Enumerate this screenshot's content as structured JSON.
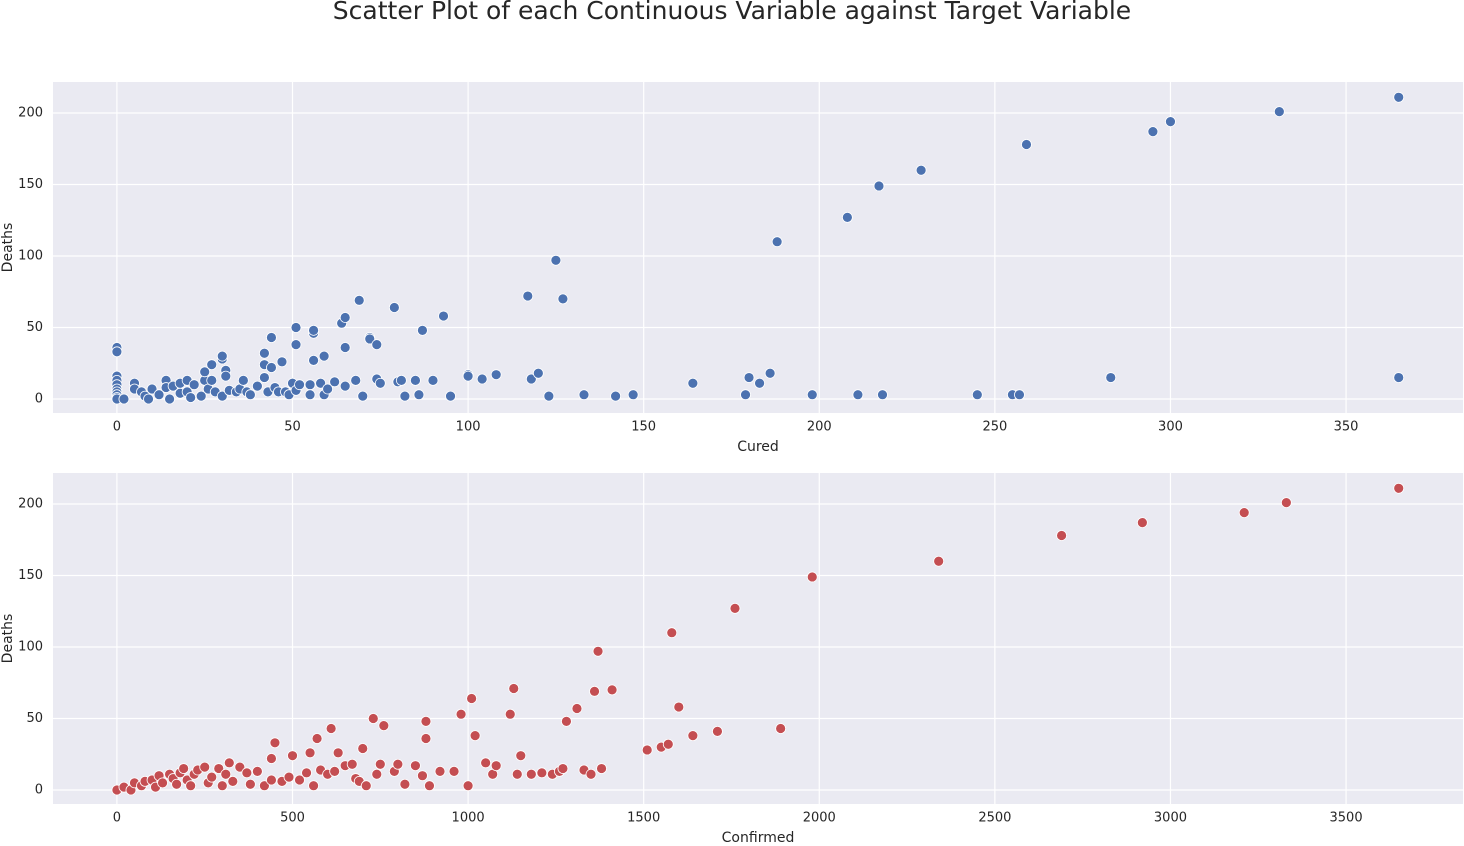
{
  "title": "Scatter Plot of each Continuous Variable against Target Variable",
  "chart_data": [
    {
      "type": "scatter",
      "xlabel": "Cured",
      "ylabel": "Deaths",
      "color": "#4c72b0",
      "xlim": [
        -18.2,
        383.3
      ],
      "ylim": [
        -9.8,
        221.7
      ],
      "xticks": [
        0,
        50,
        100,
        150,
        200,
        250,
        300,
        350
      ],
      "yticks": [
        0,
        50,
        100,
        150,
        200
      ],
      "grid": true,
      "x": [
        0,
        0,
        0,
        0,
        0,
        0,
        0,
        0,
        0,
        0,
        2,
        5,
        5,
        7,
        8,
        9,
        10,
        12,
        14,
        14,
        15,
        16,
        18,
        18,
        20,
        20,
        21,
        22,
        24,
        25,
        25,
        26,
        27,
        27,
        28,
        30,
        30,
        30,
        31,
        31,
        32,
        34,
        35,
        36,
        37,
        38,
        40,
        42,
        42,
        42,
        43,
        44,
        44,
        45,
        46,
        47,
        48,
        49,
        50,
        51,
        51,
        51,
        52,
        55,
        55,
        56,
        56,
        56,
        58,
        59,
        59,
        60,
        62,
        64,
        65,
        65,
        65,
        68,
        69,
        70,
        72,
        72,
        74,
        74,
        75,
        79,
        80,
        81,
        82,
        85,
        86,
        87,
        90,
        93,
        95,
        100,
        100,
        104,
        108,
        117,
        118,
        120,
        123,
        125,
        127,
        133,
        142,
        147,
        164,
        179,
        180,
        183,
        186,
        188,
        198,
        208,
        211,
        217,
        218,
        229,
        245,
        255,
        257,
        259,
        283,
        295,
        300,
        331,
        365,
        365
      ],
      "values": [
        36,
        33,
        16,
        13,
        10,
        7,
        5,
        3,
        1,
        0,
        0,
        11,
        7,
        5,
        2,
        0,
        7,
        3,
        13,
        8,
        0,
        9,
        4,
        11,
        13,
        5,
        1,
        10,
        2,
        13,
        19,
        7,
        24,
        13,
        5,
        28,
        30,
        2,
        20,
        16,
        6,
        5,
        7,
        13,
        5,
        3,
        9,
        15,
        24,
        32,
        5,
        22,
        43,
        8,
        5,
        26,
        5,
        3,
        11,
        50,
        38,
        6,
        10,
        10,
        3,
        46,
        48,
        27,
        11,
        30,
        3,
        7,
        12,
        53,
        57,
        36,
        9,
        13,
        69,
        2,
        43,
        42,
        38,
        14,
        11,
        64,
        12,
        13,
        2,
        13,
        3,
        48,
        13,
        58,
        2,
        17,
        16,
        14,
        17,
        72,
        14,
        18,
        2,
        97,
        70,
        3,
        2,
        3,
        11,
        3,
        15,
        11,
        18,
        110,
        3,
        127,
        3,
        149,
        3,
        160,
        3,
        3,
        3,
        178,
        15,
        187,
        194,
        201,
        211,
        15
      ]
    },
    {
      "type": "scatter",
      "xlabel": "Confirmed",
      "ylabel": "Deaths",
      "color": "#c44e52",
      "xlim": [
        -182,
        3833
      ],
      "ylim": [
        -9.8,
        221.7
      ],
      "xticks": [
        0,
        500,
        1000,
        1500,
        2000,
        2500,
        3000,
        3500
      ],
      "yticks": [
        0,
        50,
        100,
        150,
        200
      ],
      "grid": true,
      "x": [
        0,
        20,
        40,
        50,
        70,
        80,
        100,
        110,
        120,
        130,
        150,
        160,
        170,
        180,
        190,
        200,
        210,
        220,
        230,
        250,
        260,
        270,
        290,
        300,
        310,
        320,
        330,
        350,
        370,
        380,
        400,
        420,
        440,
        440,
        450,
        470,
        490,
        500,
        520,
        540,
        550,
        560,
        570,
        580,
        600,
        610,
        620,
        630,
        650,
        670,
        680,
        690,
        700,
        710,
        730,
        740,
        750,
        760,
        790,
        800,
        820,
        850,
        870,
        880,
        880,
        890,
        920,
        960,
        980,
        1000,
        1010,
        1020,
        1050,
        1070,
        1080,
        1120,
        1130,
        1140,
        1150,
        1180,
        1210,
        1240,
        1260,
        1270,
        1280,
        1310,
        1330,
        1350,
        1360,
        1370,
        1380,
        1410,
        1510,
        1550,
        1570,
        1580,
        1600,
        1640,
        1710,
        1760,
        1890,
        1980,
        2340,
        2690,
        2920,
        3210,
        3330,
        3650
      ],
      "values": [
        0,
        2,
        0,
        5,
        3,
        6,
        7,
        2,
        10,
        5,
        11,
        8,
        4,
        12,
        15,
        7,
        3,
        11,
        14,
        16,
        5,
        9,
        15,
        3,
        11,
        19,
        6,
        16,
        12,
        4,
        13,
        3,
        22,
        7,
        33,
        6,
        9,
        24,
        7,
        12,
        26,
        3,
        36,
        14,
        11,
        43,
        13,
        26,
        17,
        18,
        8,
        6,
        29,
        3,
        50,
        11,
        18,
        45,
        13,
        18,
        4,
        17,
        10,
        48,
        36,
        3,
        13,
        13,
        53,
        3,
        64,
        38,
        19,
        11,
        17,
        53,
        71,
        11,
        24,
        11,
        12,
        11,
        13,
        15,
        48,
        57,
        14,
        11,
        69,
        97,
        15,
        70,
        28,
        30,
        32,
        110,
        58,
        38,
        41,
        127,
        43,
        149,
        160,
        178,
        187,
        194,
        201,
        211
      ]
    }
  ]
}
